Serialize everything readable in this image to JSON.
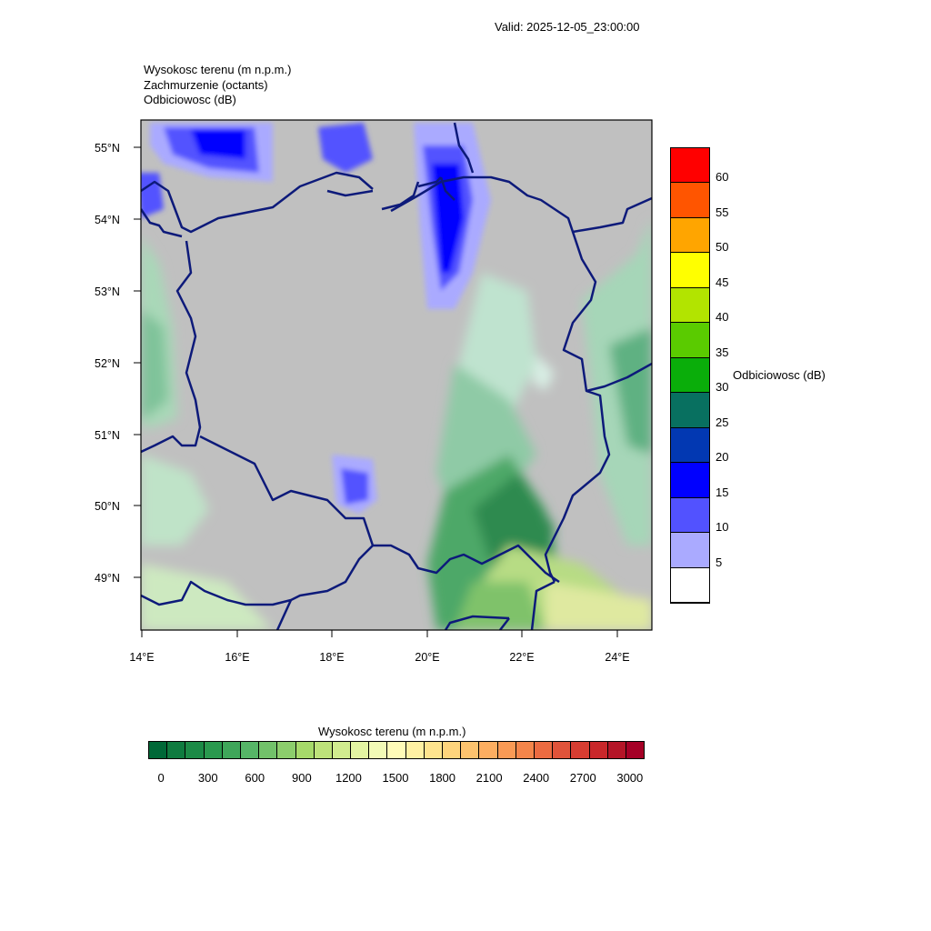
{
  "valid_label": "Valid: 2025-12-05_23:00:00",
  "titles": {
    "line1": "Wysokosc terenu   (m n.p.m.)",
    "line2": "Zachmurzenie   (octants)",
    "line3": "Odbiciowosc   (dB)"
  },
  "map": {
    "lat_labels": [
      "55°N",
      "54°N",
      "53°N",
      "52°N",
      "51°N",
      "50°N",
      "49°N"
    ],
    "lon_labels": [
      "14°E",
      "16°E",
      "18°E",
      "20°E",
      "22°E",
      "24°E"
    ],
    "background_color": "#c0c0c0",
    "border_color": "#0d1a7a"
  },
  "reflectivity_legend": {
    "title": "Odbiciowosc  (dB)",
    "labels": [
      "60",
      "55",
      "50",
      "45",
      "40",
      "35",
      "30",
      "25",
      "20",
      "15",
      "10",
      "5"
    ],
    "colors": [
      "#ff0000",
      "#ff5500",
      "#ffa500",
      "#ffff00",
      "#b2e400",
      "#5acb00",
      "#0aae0a",
      "#087060",
      "#0238b2",
      "#0000ff",
      "#5252ff",
      "#aaaaff",
      "#ffffff"
    ]
  },
  "terrain_legend": {
    "title": "Wysokosc terenu  (m n.p.m.)",
    "labels": [
      "0",
      "300",
      "600",
      "900",
      "1200",
      "1500",
      "1800",
      "2100",
      "2400",
      "2700",
      "3000"
    ],
    "colors": [
      "#006837",
      "#0f7b3f",
      "#1c8a46",
      "#2a994e",
      "#3fa65a",
      "#56b567",
      "#72c16a",
      "#8ccd6c",
      "#a6d96a",
      "#bde27a",
      "#d1ec8f",
      "#e3f4a2",
      "#f2fab6",
      "#fffbb8",
      "#fff1a3",
      "#fee48e",
      "#fed47c",
      "#fdc36e",
      "#fdae61",
      "#f99a55",
      "#f4854a",
      "#ec6b41",
      "#e0533a",
      "#d63d31",
      "#c9272a",
      "#b41527",
      "#a50026"
    ]
  }
}
